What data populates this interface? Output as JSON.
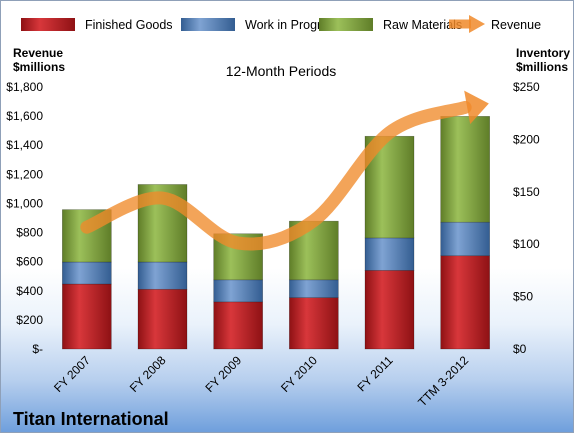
{
  "chart_data": {
    "type": "bar",
    "stacked": true,
    "title": "Titan International",
    "subtitle": "12-Month Periods",
    "categories": [
      "FY 2007",
      "FY 2008",
      "FY 2009",
      "FY 2010",
      "FY 2011",
      "TTM 3-2012"
    ],
    "series": [
      {
        "name": "Finished Goods",
        "axis": "right",
        "color": "#c0262b",
        "values": [
          62,
          57,
          45,
          49,
          75,
          89
        ]
      },
      {
        "name": "Work in Progress",
        "axis": "right",
        "color": "#4f81bd",
        "values": [
          21,
          26,
          21,
          17,
          31,
          32
        ]
      },
      {
        "name": "Raw Materials",
        "axis": "right",
        "color": "#8bb04a",
        "values": [
          50,
          74,
          44,
          56,
          97,
          101
        ]
      },
      {
        "name": "Revenue",
        "type": "line",
        "axis": "left",
        "color": "#f08a2a",
        "values": [
          837,
          1037,
          728,
          882,
          1487,
          1660
        ]
      }
    ],
    "y_left": {
      "label": "Revenue\n$millions",
      "lim": [
        0,
        1800
      ],
      "ticks": [
        "$-",
        "$200",
        "$400",
        "$600",
        "$800",
        "$1,000",
        "$1,200",
        "$1,400",
        "$1,600",
        "$1,800"
      ]
    },
    "y_right": {
      "label": "Inventory\n$millions",
      "lim": [
        0,
        250
      ],
      "ticks": [
        "$0",
        "$50",
        "$100",
        "$150",
        "$200",
        "$250"
      ]
    },
    "grid": false,
    "legend": "top"
  }
}
